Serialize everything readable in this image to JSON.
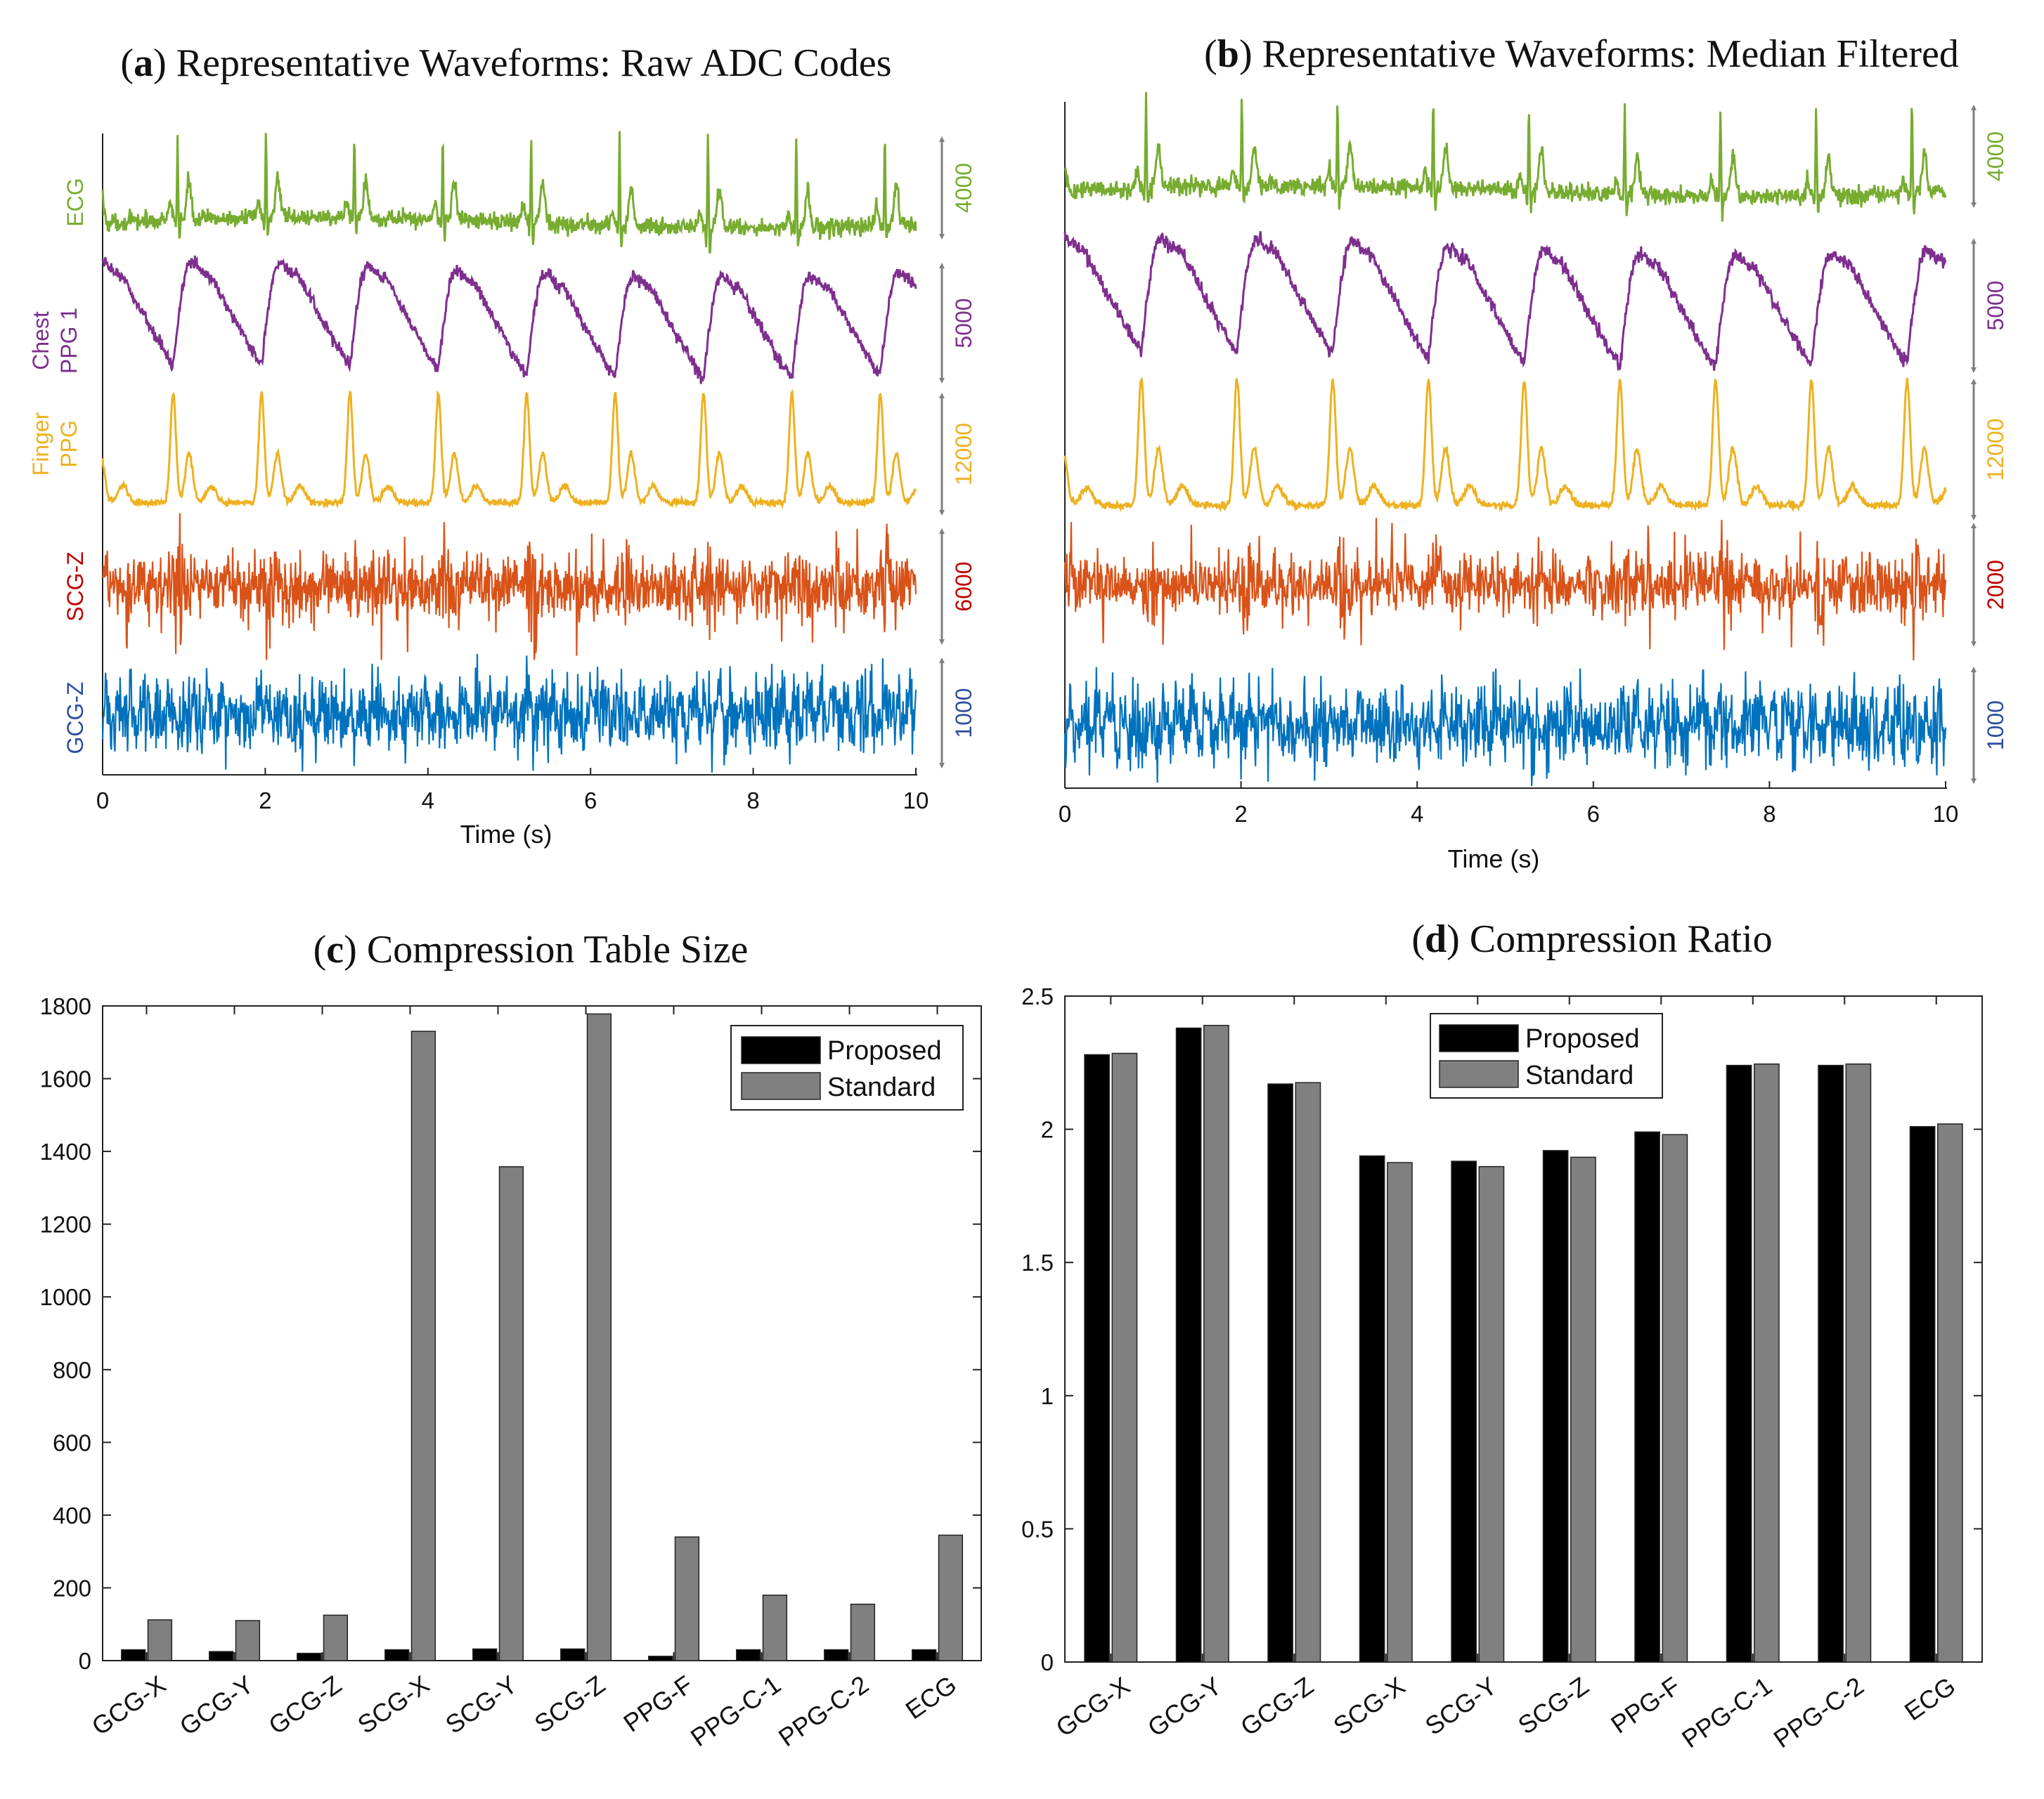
{
  "colors": {
    "ecg": "#77ac30",
    "ppg_chest": "#7e2f8e",
    "ppg_finger": "#edb120",
    "scg": "#d95319",
    "scg_label": "#c00000",
    "gcg": "#0072bd",
    "gcg_label": "#2e4f9e",
    "proposed": "#000000",
    "standard": "#808080",
    "arrow": "#7f7f7f"
  },
  "chart_data": [
    {
      "id": "a",
      "type": "line",
      "title_letter": "a",
      "title_text": "Representative Waveforms: Raw ADC Codes",
      "title_open": "(",
      "title_close": ")",
      "xlabel": "Time (s)",
      "xlim": [
        0,
        10
      ],
      "xticks": [
        0,
        2,
        4,
        6,
        8,
        10
      ],
      "heart_rate_hz": 0.92,
      "series": [
        {
          "name": "ECG",
          "label_lines": [
            "ECG"
          ],
          "scale_label": "4000",
          "kind": "ecg"
        },
        {
          "name": "Chest PPG 1",
          "label_lines": [
            "Chest",
            "PPG 1"
          ],
          "scale_label": "5000",
          "kind": "ppg_chest"
        },
        {
          "name": "Finger PPG",
          "label_lines": [
            "Finger",
            "PPG"
          ],
          "scale_label": "12000",
          "kind": "ppg_finger"
        },
        {
          "name": "SCG-Z",
          "label_lines": [
            "SCG-Z"
          ],
          "scale_label": "6000",
          "kind": "scg"
        },
        {
          "name": "GCG-Z",
          "label_lines": [
            "GCG-Z"
          ],
          "scale_label": "1000",
          "kind": "gcg"
        }
      ]
    },
    {
      "id": "b",
      "type": "line",
      "title_letter": "b",
      "title_text": "Representative Waveforms: Median Filtered",
      "title_open": "(",
      "title_close": ")",
      "xlabel": "Time (s)",
      "xlim": [
        0,
        10
      ],
      "xticks": [
        0,
        2,
        4,
        6,
        8,
        10
      ],
      "heart_rate_hz": 0.92,
      "series": [
        {
          "name": "ECG",
          "scale_label": "4000",
          "kind": "ecg"
        },
        {
          "name": "Chest PPG 1",
          "scale_label": "5000",
          "kind": "ppg_chest"
        },
        {
          "name": "Finger PPG",
          "scale_label": "12000",
          "kind": "ppg_finger"
        },
        {
          "name": "SCG-Z",
          "scale_label": "2000",
          "kind": "scg"
        },
        {
          "name": "GCG-Z",
          "scale_label": "1000",
          "kind": "gcg"
        }
      ]
    },
    {
      "id": "c",
      "type": "bar",
      "title_letter": "c",
      "title_text": "Compression Table Size",
      "title_open": "(",
      "title_close": ")",
      "categories": [
        "GCG-X",
        "GCG-Y",
        "GCG-Z",
        "SCG-X",
        "SCG-Y",
        "SCG-Z",
        "PPG-F",
        "PPG-C-1",
        "PPG-C-2",
        "ECG"
      ],
      "series": [
        {
          "name": "Proposed",
          "values": [
            30,
            25,
            20,
            30,
            32,
            32,
            12,
            30,
            30,
            30
          ]
        },
        {
          "name": "Standard",
          "values": [
            112,
            110,
            125,
            1730,
            1358,
            1778,
            340,
            180,
            155,
            345
          ]
        }
      ],
      "ylim": [
        0,
        1800
      ],
      "yticks": [
        0,
        200,
        400,
        600,
        800,
        1000,
        1200,
        1400,
        1600,
        1800
      ],
      "ytick_labels": [
        "0",
        "200",
        "400",
        "600",
        "800",
        "1000",
        "1200",
        "1400",
        "1600",
        "1800"
      ],
      "legend": "top-right"
    },
    {
      "id": "d",
      "type": "bar",
      "title_letter": "d",
      "title_text": "Compression Ratio",
      "title_open": "(",
      "title_close": ")",
      "categories": [
        "GCG-X",
        "GCG-Y",
        "GCG-Z",
        "SCG-X",
        "SCG-Y",
        "SCG-Z",
        "PPG-F",
        "PPG-C-1",
        "PPG-C-2",
        "ECG"
      ],
      "series": [
        {
          "name": "Proposed",
          "values": [
            2.28,
            2.38,
            2.17,
            1.9,
            1.88,
            1.92,
            1.99,
            2.24,
            2.24,
            2.01
          ]
        },
        {
          "name": "Standard",
          "values": [
            2.285,
            2.39,
            2.175,
            1.875,
            1.86,
            1.895,
            1.98,
            2.245,
            2.245,
            2.02
          ]
        }
      ],
      "ylim": [
        0,
        2.5
      ],
      "yticks": [
        0,
        0.5,
        1,
        1.5,
        2,
        2.5
      ],
      "ytick_labels": [
        "0",
        "0.5",
        "1",
        "1.5",
        "2",
        "2.5"
      ],
      "legend": "top-center"
    }
  ]
}
